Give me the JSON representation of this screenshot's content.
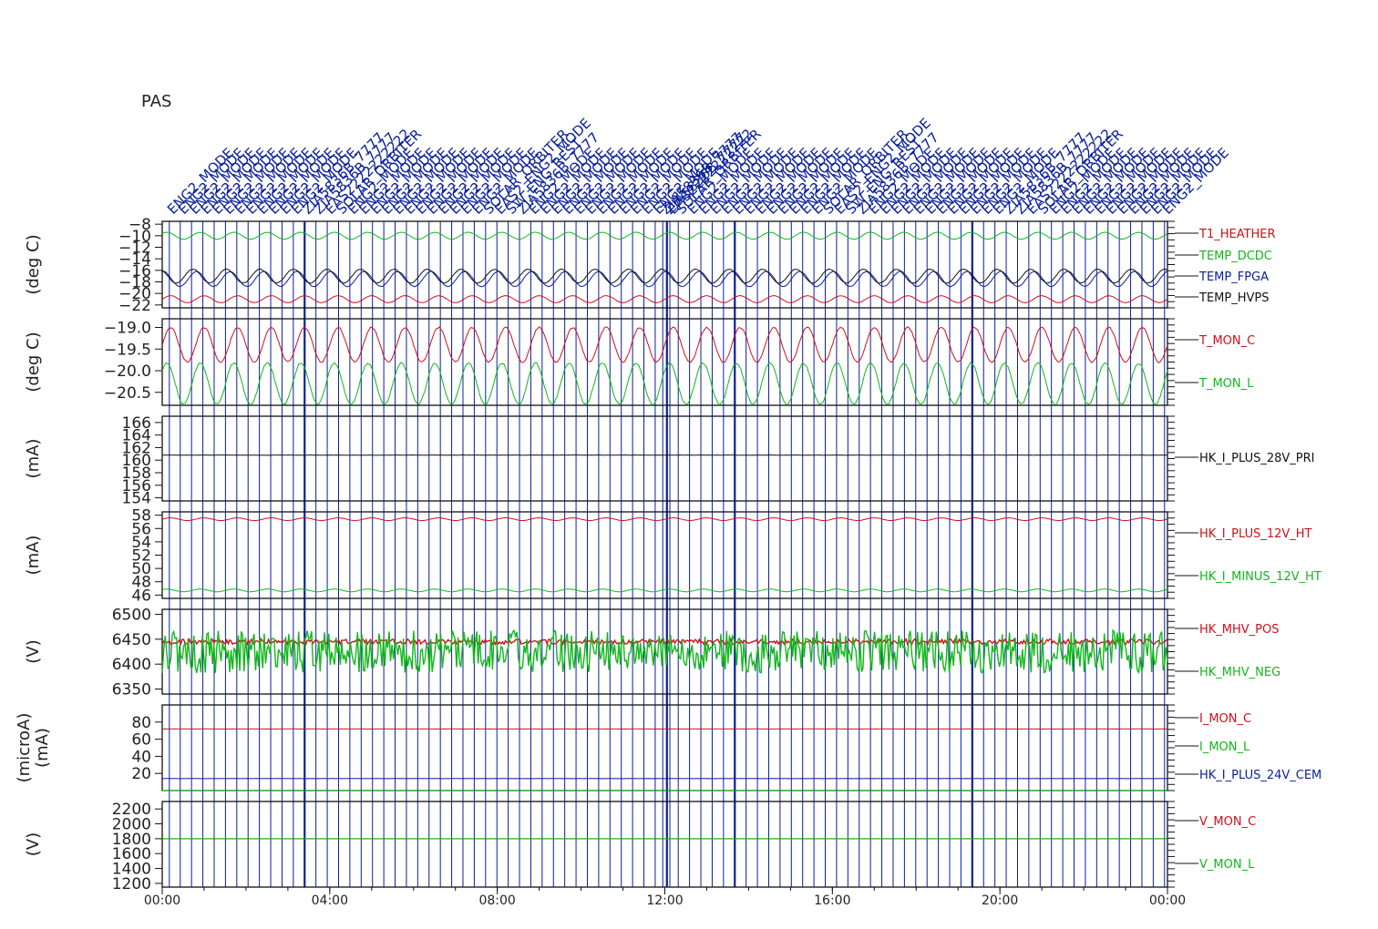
{
  "title": "PAS",
  "colors": {
    "red": "#d0101a",
    "green": "#11b81a",
    "blue": "#0a1f9c",
    "black": "#111111"
  },
  "chart_data": [
    {
      "type": "line",
      "unit": "(deg C)",
      "yticks": [
        -8,
        -10,
        -12,
        -14,
        -16,
        -18,
        -20,
        -22
      ],
      "ylim": [
        -22.5,
        -7.5
      ],
      "series": [
        {
          "name": "T1_HEATHER",
          "color": "red",
          "values": [
            -21.0,
            -20.2,
            -21.4
          ],
          "periods": 30
        },
        {
          "name": "TEMP_DCDC",
          "color": "green",
          "values": [
            -10.0,
            -9.4,
            -10.6
          ],
          "periods": 30
        },
        {
          "name": "TEMP_FPGA",
          "color": "blue",
          "values": [
            -17.5,
            -16.2,
            -18.8
          ],
          "periods": 30
        },
        {
          "name": "TEMP_HVPS",
          "color": "black",
          "values": [
            -17.0,
            -15.8,
            -18.2
          ],
          "periods": 30
        }
      ]
    },
    {
      "type": "line",
      "unit": "(deg C)",
      "yticks": [
        -19.0,
        -19.5,
        -20.0,
        -20.5
      ],
      "ytick_labels": [
        "−19.0",
        "−19.5",
        "−20.0",
        "−20.5"
      ],
      "ylim": [
        -20.8,
        -18.8
      ],
      "series": [
        {
          "name": "T_MON_C",
          "color": "red",
          "values": [
            -19.4,
            -18.95,
            -19.75
          ],
          "periods": 30
        },
        {
          "name": "T_MON_L",
          "color": "green",
          "values": [
            -20.3,
            -19.75,
            -20.7
          ],
          "periods": 30
        }
      ]
    },
    {
      "type": "line",
      "unit": "(mA)",
      "yticks": [
        166,
        164,
        162,
        160,
        158,
        156,
        154
      ],
      "ylim": [
        153.5,
        167
      ],
      "series": [
        {
          "name": "HK_I_PLUS_28V_PRI",
          "color": "black",
          "values": [
            160.8,
            160.9,
            160.7
          ],
          "periods": 0
        }
      ]
    },
    {
      "type": "line",
      "unit": "(mA)",
      "yticks": [
        58,
        56,
        54,
        52,
        50,
        48,
        46
      ],
      "ylim": [
        45.5,
        58.5
      ],
      "series": [
        {
          "name": "HK_I_PLUS_12V_HT",
          "color": "red",
          "values": [
            57.4,
            57.6,
            57.2
          ],
          "periods": 30
        },
        {
          "name": "HK_I_MINUS_12V_HT",
          "color": "green",
          "values": [
            46.7,
            46.9,
            46.5
          ],
          "periods": 30
        }
      ]
    },
    {
      "type": "line",
      "unit": "(V)",
      "yticks": [
        6500,
        6450,
        6400,
        6350
      ],
      "ylim": [
        6340,
        6510
      ],
      "series": [
        {
          "name": "HK_MHV_POS",
          "color": "red",
          "values": [
            6445,
            6460,
            6430
          ],
          "periods": 0
        },
        {
          "name": "HK_MHV_NEG",
          "color": "green",
          "values": [
            6425,
            6470,
            6385
          ],
          "periods": 0
        }
      ]
    },
    {
      "type": "line",
      "unit": "(microA)\n(mA)",
      "yticks": [
        80,
        60,
        40,
        20
      ],
      "ylim": [
        0,
        100
      ],
      "series": [
        {
          "name": "I_MON_C",
          "color": "red",
          "values": [
            72,
            72.5,
            71.5
          ],
          "periods": 0
        },
        {
          "name": "I_MON_L",
          "color": "green",
          "values": [
            0,
            0,
            0
          ],
          "periods": 0
        },
        {
          "name": "HK_I_PLUS_24V_CEM",
          "color": "blue",
          "values": [
            14,
            14.3,
            13.7
          ],
          "periods": 0
        }
      ]
    },
    {
      "type": "line",
      "unit": "(V)",
      "yticks": [
        2200,
        2000,
        1800,
        1600,
        1400,
        1200
      ],
      "ylim": [
        1150,
        2300
      ],
      "series": [
        {
          "name": "V_MON_C",
          "color": "red",
          "values": [
            1800,
            1800,
            1800
          ],
          "periods": 0
        },
        {
          "name": "V_MON_L",
          "color": "green",
          "values": [
            1800,
            1800,
            1800
          ],
          "periods": 0
        }
      ]
    }
  ],
  "x_axis": {
    "ticks": [
      "00:00",
      "04:00",
      "08:00",
      "12:00",
      "16:00",
      "20:00",
      "00:00"
    ],
    "xlim_hours": [
      0,
      24
    ]
  },
  "events": {
    "labels": [
      "ENG2_MODE",
      "ENG2_MODE",
      "ENG2_MODE",
      "ENG2_MODE",
      "ENG2_MODE",
      "ENG2_MODE",
      "ENG2_MODE",
      "ENG2_MODE",
      "ENG2_MODE",
      "ENG2_MODE",
      "ENG2_MODE",
      "ENG2_MODE",
      "ZIA5836B_7777",
      "ZIA5836B_7777",
      "EAS2222222222",
      "SOLAR_ORBITER",
      "ENG2_MODE",
      "ENG2_MODE",
      "ENG2_MODE",
      "ENG2_MODE",
      "ENG2_MODE",
      "ENG2_MODE",
      "ENG2_MODE",
      "ENG2_MODE",
      "ENG2_MODE",
      "ENG2_MODE",
      "ENG2_MODE",
      "ENG2_MODE",
      "SOLAR_ORBITER",
      "EAS2_ENG2_MODE",
      "SW_ENG_REST",
      "ZIA5836B_7777"
    ],
    "hours": [
      0.17,
      0.43,
      0.7,
      0.97,
      1.24,
      1.51,
      1.78,
      2.05,
      2.32,
      2.59,
      2.86,
      3.13,
      3.4,
      3.67,
      3.94,
      4.21,
      4.48,
      4.75,
      5.02,
      5.29,
      5.56,
      5.83,
      6.1,
      6.37,
      6.64,
      6.91,
      7.18,
      7.45,
      7.72,
      7.99,
      8.26,
      8.53,
      8.8,
      9.07,
      9.34,
      9.61,
      9.88,
      10.15,
      10.42,
      10.69,
      10.96,
      11.23,
      11.5,
      11.77,
      11.95,
      12.05,
      12.12,
      12.32,
      12.59,
      12.86,
      13.13,
      13.4,
      13.67,
      13.94,
      14.21,
      14.48,
      14.75,
      15.02,
      15.29,
      15.56,
      15.83,
      16.1,
      16.37,
      16.64,
      16.91,
      17.18,
      17.45,
      17.72,
      17.99,
      18.26,
      18.53,
      18.8,
      19.07,
      19.34,
      19.61,
      19.88,
      20.15,
      20.42,
      20.69,
      20.96,
      21.23,
      21.5,
      21.77,
      22.04,
      22.31,
      22.58,
      22.85,
      23.12,
      23.39,
      23.66,
      23.93
    ],
    "bold_hours": [
      3.4,
      12.05,
      13.67,
      19.34
    ]
  }
}
